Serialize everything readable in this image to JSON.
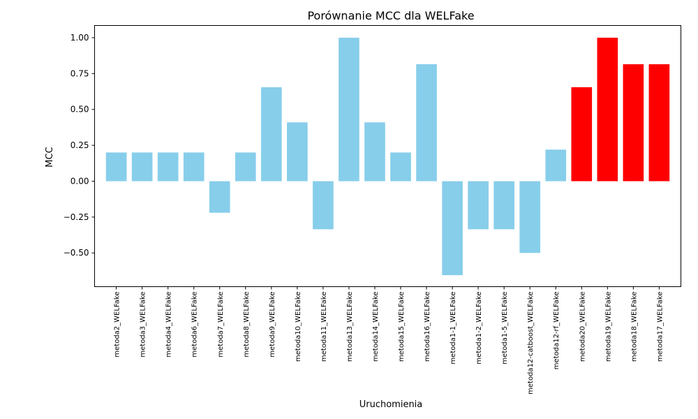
{
  "chart_data": {
    "type": "bar",
    "title": "Porównanie MCC dla WELFake",
    "xlabel": "Uruchomienia",
    "ylabel": "MCC",
    "ylim": [
      -0.735,
      1.085
    ],
    "yticks": [
      -0.5,
      -0.25,
      0.0,
      0.25,
      0.5,
      0.75,
      1.0
    ],
    "ytick_labels": [
      "−0.50",
      "−0.25",
      "0.00",
      "0.25",
      "0.50",
      "0.75",
      "1.00"
    ],
    "grid": false,
    "legend": "none",
    "colors": {
      "default": "#87ceeb",
      "highlight": "#ff0000"
    },
    "categories": [
      "metoda2_WELFake",
      "metoda3_WELFake",
      "metoda4_WELFake",
      "metoda6_WELFake",
      "metoda7_WELFake",
      "metoda8_WELFake",
      "metoda9_WELFake",
      "metoda10_WELFake",
      "metoda11_WELFake",
      "metoda13_WELFake",
      "metoda14_WELFake",
      "metoda15_WELFake",
      "metoda16_WELFake",
      "metoda1-1_WELFake",
      "metoda1-2_WELFake",
      "metoda1-5_WELFake",
      "metoda12-catboost_WELFake",
      "metoda12-rf_WELFake",
      "metoda20_WELFake",
      "metoda19_WELFake",
      "metoda18_WELFake",
      "metoda17_WELFake"
    ],
    "values": [
      0.2,
      0.2,
      0.2,
      0.2,
      -0.22,
      0.2,
      0.655,
      0.41,
      -0.335,
      1.0,
      0.41,
      0.2,
      0.815,
      -0.655,
      -0.335,
      -0.335,
      -0.5,
      0.22,
      0.655,
      1.0,
      0.815,
      0.815
    ],
    "highlighted": [
      false,
      false,
      false,
      false,
      false,
      false,
      false,
      false,
      false,
      false,
      false,
      false,
      false,
      false,
      false,
      false,
      false,
      false,
      true,
      true,
      true,
      true
    ]
  }
}
